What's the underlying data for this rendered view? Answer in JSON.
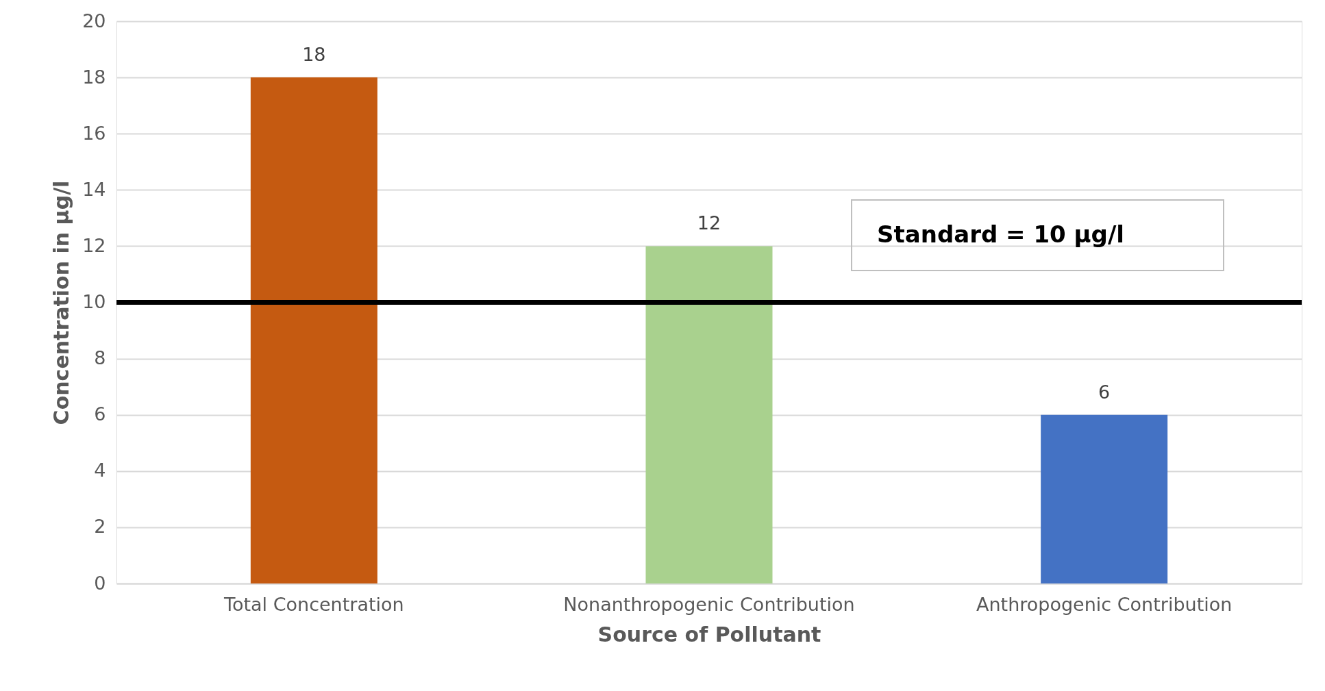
{
  "chart_data": {
    "type": "bar",
    "categories": [
      "Total Concentration",
      "Nonanthropogenic Contribution",
      "Anthropogenic Contribution"
    ],
    "values": [
      18,
      12,
      6
    ],
    "colors": [
      "#c55a11",
      "#a9d18e",
      "#4472c4"
    ],
    "xlabel": "Source of Pollutant",
    "ylabel": "Concentration in µg/l",
    "ylim": [
      0,
      20
    ],
    "yticks": [
      0,
      2,
      4,
      6,
      8,
      10,
      12,
      14,
      16,
      18,
      20
    ],
    "grid": "y",
    "data_labels": true,
    "ref_lines": [
      {
        "axis": "y",
        "value": 10,
        "label": "Standard = 10 µg/l",
        "color": "#000000"
      }
    ]
  }
}
